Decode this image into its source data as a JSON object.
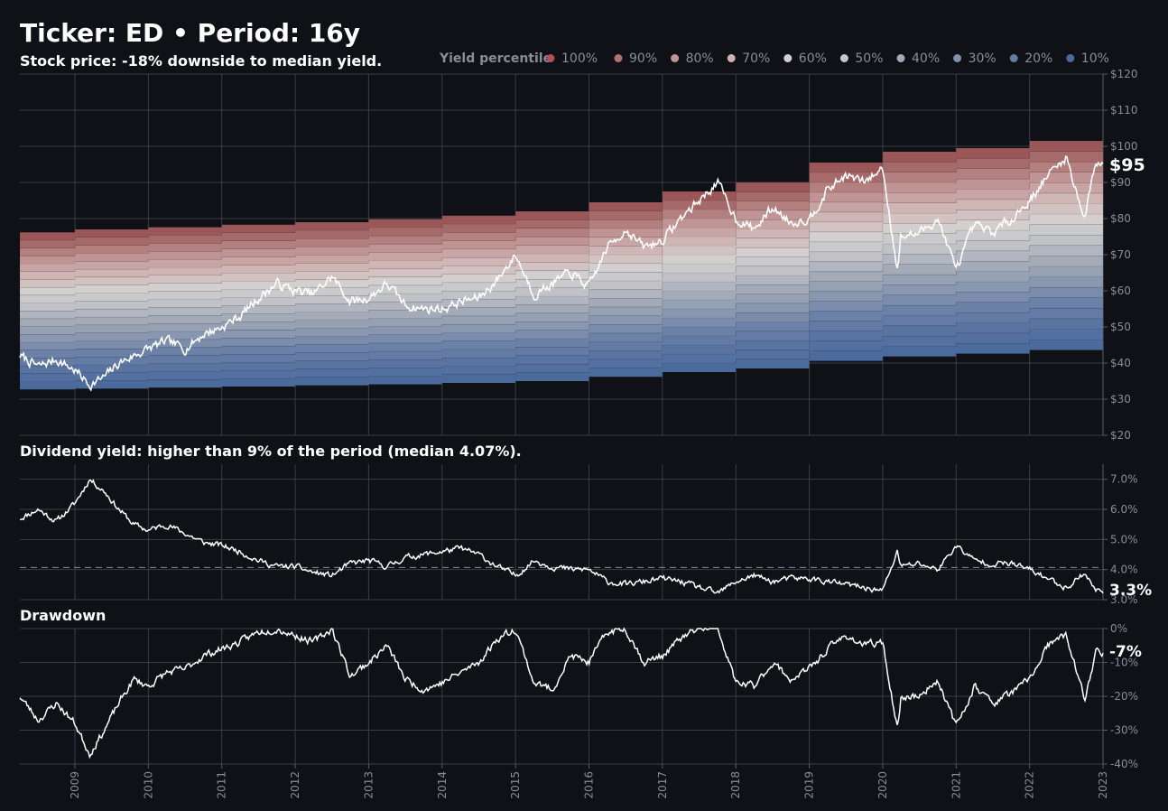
{
  "header": {
    "title": "Ticker: ED  •  Period: 16y",
    "subtitle": "Stock price: -18% downside to median yield."
  },
  "legend": {
    "title": "Yield percentile",
    "entries": [
      "100%",
      "90%",
      "80%",
      "70%",
      "60%",
      "50%",
      "40%",
      "30%",
      "20%",
      "10%"
    ],
    "colors": [
      "#b05253",
      "#b57170",
      "#c09494",
      "#cfb2b1",
      "#d4cfcf",
      "#c4c7cd",
      "#a3aab8",
      "#8090a8",
      "#647ca0",
      "#4c6b9d"
    ]
  },
  "chart_data": [
    {
      "type": "area",
      "name": "price-panel",
      "title": "Stock price: -18% downside to median yield.",
      "ylim": [
        20,
        120
      ],
      "yticks": [
        20,
        30,
        40,
        50,
        60,
        70,
        80,
        90,
        100,
        110,
        120
      ],
      "ytick_labels": [
        "$20",
        "$30",
        "$40",
        "$50",
        "$60",
        "$70",
        "$80",
        "$90",
        "$100",
        "$110",
        "$120"
      ],
      "xlim": [
        2008.25,
        2023.0
      ],
      "band_bounds_by_year": {
        "years": [
          2008.25,
          2009,
          2010,
          2011,
          2012,
          2013,
          2014,
          2015,
          2016,
          2017,
          2018,
          2019,
          2020,
          2021,
          2022,
          2023
        ],
        "p0": [
          32.7,
          32.9,
          33.2,
          33.5,
          33.8,
          34.1,
          34.5,
          35.0,
          36.2,
          37.5,
          38.5,
          40.6,
          41.8,
          42.6,
          43.6,
          44.0
        ],
        "p100": [
          76.2,
          77.0,
          77.6,
          78.3,
          79.0,
          79.8,
          80.8,
          82.0,
          84.5,
          87.5,
          90.0,
          95.5,
          98.5,
          99.5,
          101.5,
          102.8
        ]
      },
      "price_series": {
        "name": "Price",
        "x": [
          2008.25,
          2008.5,
          2008.75,
          2009.0,
          2009.2,
          2009.4,
          2009.6,
          2009.8,
          2010.0,
          2010.25,
          2010.5,
          2010.75,
          2011.0,
          2011.25,
          2011.5,
          2011.75,
          2012.0,
          2012.25,
          2012.5,
          2012.75,
          2013.0,
          2013.25,
          2013.5,
          2013.75,
          2014.0,
          2014.25,
          2014.5,
          2014.75,
          2015.0,
          2015.25,
          2015.5,
          2015.75,
          2016.0,
          2016.25,
          2016.5,
          2016.75,
          2017.0,
          2017.25,
          2017.5,
          2017.75,
          2018.0,
          2018.25,
          2018.5,
          2018.75,
          2019.0,
          2019.25,
          2019.5,
          2019.75,
          2020.0,
          2020.2,
          2020.25,
          2020.5,
          2020.75,
          2021.0,
          2021.25,
          2021.5,
          2021.75,
          2022.0,
          2022.25,
          2022.5,
          2022.75,
          2022.9,
          2023.0
        ],
        "y": [
          42,
          39,
          41,
          38,
          34,
          36,
          40,
          42,
          44,
          46,
          44,
          48,
          50,
          53,
          58,
          62,
          60,
          59,
          64,
          57,
          58,
          62,
          56,
          55,
          55,
          57,
          58,
          63,
          70,
          59,
          62,
          65,
          61,
          72,
          77,
          72,
          74,
          80,
          85,
          90,
          80,
          77,
          83,
          79,
          80,
          88,
          92,
          90,
          94,
          66,
          75,
          76,
          80,
          66,
          78,
          76,
          80,
          85,
          92,
          97,
          80,
          96,
          95
        ]
      },
      "last_label": "$95"
    },
    {
      "type": "line",
      "name": "yield-panel",
      "title": "Dividend yield: higher than 9% of the period (median 4.07%).",
      "ylim": [
        3.0,
        7.5
      ],
      "yticks": [
        3.0,
        4.0,
        5.0,
        6.0,
        7.0
      ],
      "ytick_labels": [
        "3.0%",
        "4.0%",
        "5.0%",
        "6.0%",
        "7.0%"
      ],
      "median": 4.07,
      "xlim": [
        2008.25,
        2023.0
      ],
      "series": {
        "name": "Dividend yield",
        "x": [
          2008.25,
          2008.5,
          2008.75,
          2009.0,
          2009.2,
          2009.4,
          2009.6,
          2009.8,
          2010.0,
          2010.25,
          2010.5,
          2010.75,
          2011.0,
          2011.25,
          2011.5,
          2011.75,
          2012.0,
          2012.25,
          2012.5,
          2012.75,
          2013.0,
          2013.25,
          2013.5,
          2013.75,
          2014.0,
          2014.25,
          2014.5,
          2014.75,
          2015.0,
          2015.25,
          2015.5,
          2015.75,
          2016.0,
          2016.25,
          2016.5,
          2016.75,
          2017.0,
          2017.25,
          2017.5,
          2017.75,
          2018.0,
          2018.25,
          2018.5,
          2018.75,
          2019.0,
          2019.25,
          2019.5,
          2019.75,
          2020.0,
          2020.2,
          2020.25,
          2020.5,
          2020.75,
          2021.0,
          2021.25,
          2021.5,
          2021.75,
          2022.0,
          2022.25,
          2022.5,
          2022.75,
          2022.9,
          2023.0
        ],
        "y": [
          5.7,
          6.0,
          5.6,
          6.2,
          7.0,
          6.6,
          6.0,
          5.5,
          5.3,
          5.5,
          5.2,
          4.9,
          4.8,
          4.6,
          4.3,
          4.1,
          4.1,
          3.9,
          3.8,
          4.2,
          4.3,
          4.1,
          4.4,
          4.5,
          4.6,
          4.7,
          4.5,
          4.1,
          3.8,
          4.3,
          4.1,
          4.0,
          4.0,
          3.6,
          3.5,
          3.6,
          3.7,
          3.6,
          3.4,
          3.2,
          3.6,
          3.8,
          3.6,
          3.7,
          3.7,
          3.6,
          3.5,
          3.4,
          3.3,
          4.6,
          4.1,
          4.2,
          4.0,
          4.8,
          4.3,
          4.2,
          4.2,
          4.0,
          3.7,
          3.4,
          3.9,
          3.3,
          3.3
        ]
      },
      "last_label": "3.3%"
    },
    {
      "type": "line",
      "name": "drawdown-panel",
      "title": "Drawdown",
      "ylim": [
        -40,
        0
      ],
      "yticks": [
        0,
        -10,
        -20,
        -30,
        -40
      ],
      "ytick_labels": [
        "0%",
        "-10%",
        "-20%",
        "-30%",
        "-40%"
      ],
      "xlim": [
        2008.25,
        2023.0
      ],
      "xticks": [
        2009,
        2010,
        2011,
        2012,
        2013,
        2014,
        2015,
        2016,
        2017,
        2018,
        2019,
        2020,
        2021,
        2022,
        2023
      ],
      "xtick_labels": [
        "2009",
        "2010",
        "2011",
        "2012",
        "2013",
        "2014",
        "2015",
        "2016",
        "2017",
        "2018",
        "2019",
        "2020",
        "2021",
        "2022",
        "2023"
      ],
      "series": {
        "name": "Drawdown",
        "x": [
          2008.25,
          2008.5,
          2008.75,
          2009.0,
          2009.2,
          2009.4,
          2009.6,
          2009.8,
          2010.0,
          2010.25,
          2010.5,
          2010.75,
          2011.0,
          2011.25,
          2011.5,
          2011.75,
          2012.0,
          2012.25,
          2012.5,
          2012.75,
          2013.0,
          2013.25,
          2013.5,
          2013.75,
          2014.0,
          2014.25,
          2014.5,
          2014.75,
          2015.0,
          2015.25,
          2015.5,
          2015.75,
          2016.0,
          2016.25,
          2016.5,
          2016.75,
          2017.0,
          2017.25,
          2017.5,
          2017.75,
          2018.0,
          2018.25,
          2018.5,
          2018.75,
          2019.0,
          2019.25,
          2019.5,
          2019.75,
          2020.0,
          2020.2,
          2020.25,
          2020.5,
          2020.75,
          2021.0,
          2021.25,
          2021.5,
          2021.75,
          2022.0,
          2022.25,
          2022.5,
          2022.75,
          2022.9,
          2023.0
        ],
        "y": [
          -20,
          -27,
          -22,
          -28,
          -37,
          -30,
          -22,
          -15,
          -17,
          -13,
          -12,
          -8,
          -6,
          -4,
          -1,
          0,
          -2,
          -4,
          0,
          -14,
          -10,
          -5,
          -15,
          -18,
          -16,
          -13,
          -10,
          -3,
          0,
          -16,
          -18,
          -8,
          -10,
          -1,
          0,
          -10,
          -8,
          -3,
          0,
          0,
          -16,
          -17,
          -10,
          -15,
          -12,
          -6,
          -2,
          -5,
          -4,
          -30,
          -20,
          -20,
          -15,
          -29,
          -17,
          -22,
          -19,
          -15,
          -5,
          -2,
          -21,
          -7,
          -7
        ]
      },
      "last_label": "-7%"
    }
  ]
}
